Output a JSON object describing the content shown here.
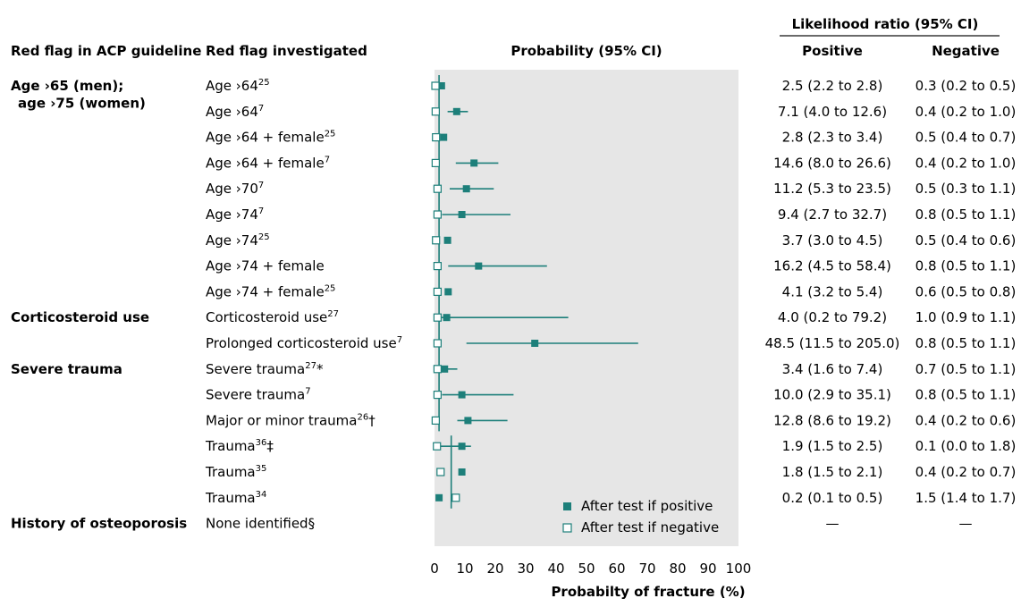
{
  "headers": {
    "group_col": "Red flag in ACP guideline",
    "flag_col": "Red flag investigated",
    "prob_col": "Probability (95% CI)",
    "lr_col": "Likelihood ratio (95% CI)",
    "lr_pos": "Positive",
    "lr_neg": "Negative"
  },
  "groups": [
    {
      "label": "Age ›65 (men);",
      "label2": "  age ›75 (women)",
      "row": 0
    },
    {
      "label": "Corticosteroid use",
      "row": 9
    },
    {
      "label": "Severe trauma",
      "row": 11
    },
    {
      "label": "History of osteoporosis",
      "row": 17
    }
  ],
  "rows": [
    {
      "flag": "Age ›64",
      "sup": "25",
      "suffix": "",
      "lr_pos": "2.5 (2.2 to 2.8)",
      "lr_neg": "0.3 (0.2 to 0.5)"
    },
    {
      "flag": "Age ›64",
      "sup": "7",
      "suffix": "",
      "lr_pos": "7.1 (4.0 to 12.6)",
      "lr_neg": "0.4 (0.2 to 1.0)"
    },
    {
      "flag": "Age ›64 + female",
      "sup": "25",
      "suffix": "",
      "lr_pos": "2.8 (2.3 to 3.4)",
      "lr_neg": "0.5 (0.4 to 0.7)"
    },
    {
      "flag": "Age ›64 + female",
      "sup": "7",
      "suffix": "",
      "lr_pos": "14.6 (8.0 to 26.6)",
      "lr_neg": "0.4 (0.2 to 1.0)"
    },
    {
      "flag": "Age ›70",
      "sup": "7",
      "suffix": "",
      "lr_pos": "11.2 (5.3 to 23.5)",
      "lr_neg": "0.5 (0.3 to 1.1)"
    },
    {
      "flag": "Age ›74",
      "sup": "7",
      "suffix": "",
      "lr_pos": "9.4 (2.7 to 32.7)",
      "lr_neg": "0.8 (0.5 to 1.1)"
    },
    {
      "flag": "Age ›74",
      "sup": "25",
      "suffix": "",
      "lr_pos": "3.7 (3.0 to 4.5)",
      "lr_neg": "0.5 (0.4 to 0.6)"
    },
    {
      "flag": "Age ›74 + female",
      "sup": "",
      "suffix": "",
      "lr_pos": "16.2 (4.5 to 58.4)",
      "lr_neg": "0.8 (0.5 to 1.1)"
    },
    {
      "flag": "Age ›74 + female",
      "sup": "25",
      "suffix": "",
      "lr_pos": "4.1 (3.2 to 5.4)",
      "lr_neg": "0.6 (0.5 to 0.8)"
    },
    {
      "flag": "Corticosteroid use",
      "sup": "27",
      "suffix": "",
      "lr_pos": "4.0 (0.2 to 79.2)",
      "lr_neg": "1.0 (0.9 to 1.1)"
    },
    {
      "flag": "Prolonged corticosteroid use",
      "sup": "7",
      "suffix": "",
      "lr_pos": "48.5 (11.5 to 205.0)",
      "lr_neg": "0.8 (0.5 to 1.1)"
    },
    {
      "flag": "Severe trauma",
      "sup": "27",
      "suffix": "*",
      "lr_pos": "3.4 (1.6 to 7.4)",
      "lr_neg": "0.7 (0.5 to 1.1)"
    },
    {
      "flag": "Severe trauma",
      "sup": "7",
      "suffix": "",
      "lr_pos": "10.0 (2.9 to 35.1)",
      "lr_neg": "0.8 (0.5 to 1.1)"
    },
    {
      "flag": "Major or minor trauma",
      "sup": "26",
      "suffix": "†",
      "lr_pos": "12.8 (8.6 to 19.2)",
      "lr_neg": "0.4 (0.2 to 0.6)"
    },
    {
      "flag": "Trauma",
      "sup": "36",
      "suffix": "‡",
      "lr_pos": "1.9 (1.5 to 2.5)",
      "lr_neg": "0.1 (0.0 to 1.8)"
    },
    {
      "flag": "Trauma",
      "sup": "35",
      "suffix": "",
      "lr_pos": "1.8 (1.5 to 2.1)",
      "lr_neg": "0.4 (0.2 to 0.7)"
    },
    {
      "flag": "Trauma",
      "sup": "34",
      "suffix": "",
      "lr_pos": "0.2 (0.1 to 0.5)",
      "lr_neg": "1.5 (1.4 to 1.7)"
    },
    {
      "flag": "None identified§",
      "sup": "",
      "suffix": "",
      "lr_pos": "—",
      "lr_neg": "—"
    }
  ],
  "chart_data": {
    "type": "scatter",
    "xlabel": "Probabilty of fracture (%)",
    "xlim": [
      0,
      100
    ],
    "xticks": [
      0,
      10,
      20,
      30,
      40,
      50,
      60,
      70,
      80,
      90,
      100
    ],
    "grid": false,
    "legend_position": "bottom-right",
    "colors": {
      "marker": "#1d7f7a",
      "panel": "#e6e6e6",
      "line": "#1d7f7a"
    },
    "series": [
      {
        "name": "After test if positive",
        "style": "filled-square",
        "points": [
          {
            "y": 2.3,
            "lo": 2.0,
            "hi": 2.6
          },
          {
            "y": 7.3,
            "lo": 4.3,
            "hi": 11.0
          },
          {
            "y": 3.0,
            "lo": 2.4,
            "hi": 3.6
          },
          {
            "y": 13.0,
            "lo": 7.0,
            "hi": 21.0
          },
          {
            "y": 10.5,
            "lo": 5.0,
            "hi": 19.5
          },
          {
            "y": 9.0,
            "lo": 2.5,
            "hi": 25.0
          },
          {
            "y": 4.3,
            "lo": 3.5,
            "hi": 5.0
          },
          {
            "y": 14.5,
            "lo": 4.5,
            "hi": 37.0
          },
          {
            "y": 4.5,
            "lo": 3.5,
            "hi": 5.5
          },
          {
            "y": 4.0,
            "lo": 0.2,
            "hi": 44.0
          },
          {
            "y": 33.0,
            "lo": 10.5,
            "hi": 67.0
          },
          {
            "y": 3.3,
            "lo": 1.5,
            "hi": 7.5
          },
          {
            "y": 9.0,
            "lo": 2.5,
            "hi": 26.0
          },
          {
            "y": 11.0,
            "lo": 7.5,
            "hi": 24.0
          },
          {
            "y": 9.0,
            "lo": 7.5,
            "hi": 12.0
          },
          {
            "y": 9.0,
            "lo": 8.0,
            "hi": 10.0
          },
          {
            "y": 1.5,
            "lo": 1.0,
            "hi": 2.0
          },
          null
        ]
      },
      {
        "name": "After test if negative",
        "style": "open-square",
        "points": [
          {
            "y": 0.3,
            "lo": 0.2,
            "hi": 0.5
          },
          {
            "y": 0.4,
            "lo": 0.2,
            "hi": 1.0
          },
          {
            "y": 0.5,
            "lo": 0.4,
            "hi": 0.7
          },
          {
            "y": 0.4,
            "lo": 0.2,
            "hi": 1.0
          },
          {
            "y": 1.0,
            "lo": 0.3,
            "hi": 1.5
          },
          {
            "y": 1.0,
            "lo": 0.5,
            "hi": 1.5
          },
          {
            "y": 0.5,
            "lo": 0.4,
            "hi": 0.6
          },
          {
            "y": 1.0,
            "lo": 0.5,
            "hi": 1.5
          },
          {
            "y": 1.0,
            "lo": 0.8,
            "hi": 1.2
          },
          {
            "y": 1.0,
            "lo": 0.9,
            "hi": 1.1
          },
          {
            "y": 1.0,
            "lo": 0.5,
            "hi": 1.5
          },
          {
            "y": 1.0,
            "lo": 0.5,
            "hi": 1.5
          },
          {
            "y": 1.0,
            "lo": 0.5,
            "hi": 1.5
          },
          {
            "y": 0.4,
            "lo": 0.2,
            "hi": 0.6
          },
          {
            "y": 0.8,
            "lo": 0.0,
            "hi": 10.0
          },
          {
            "y": 2.0,
            "lo": 1.5,
            "hi": 2.5
          },
          {
            "y": 7.0,
            "lo": 6.5,
            "hi": 7.5
          },
          null
        ]
      }
    ],
    "pretest": [
      {
        "rows": [
          0,
          13
        ],
        "value": 1.5
      },
      {
        "rows": [
          14,
          16
        ],
        "value": 5.5
      }
    ]
  }
}
